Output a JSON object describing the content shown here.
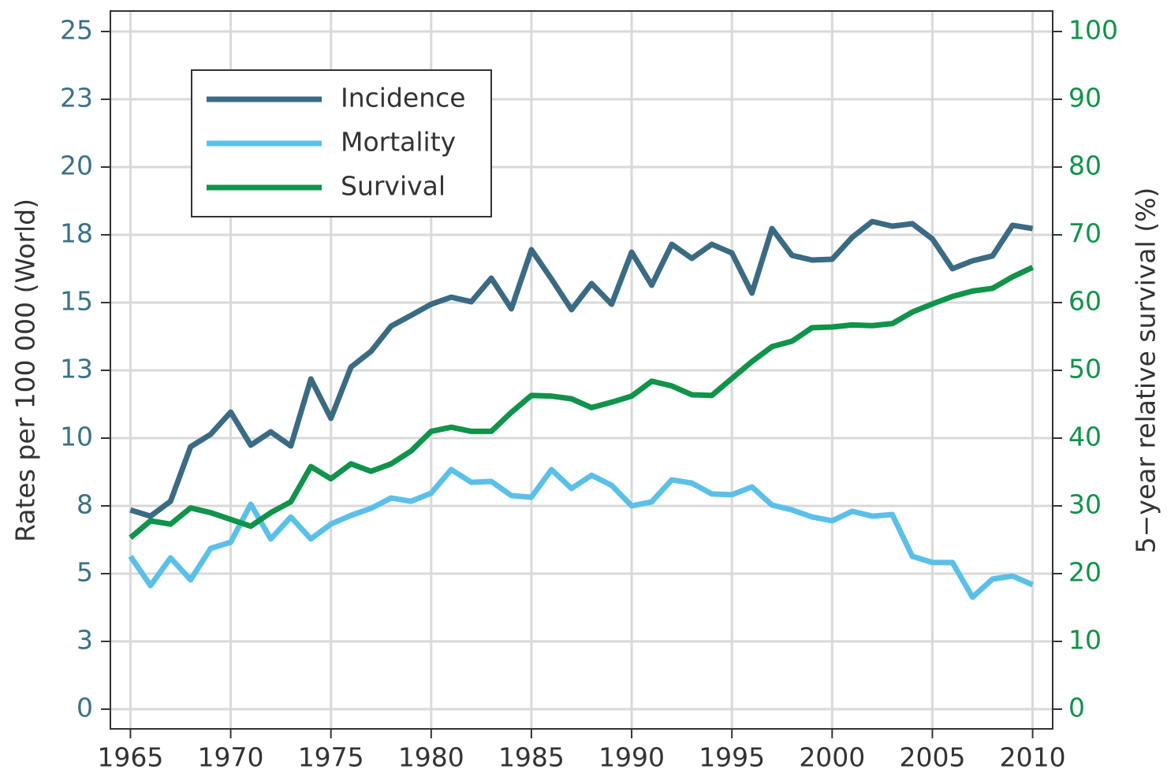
{
  "chart_data": {
    "type": "line",
    "y_label": "Rates per 100 000 (World)",
    "y2_label": "5−year relative survival (%)",
    "x": [
      1965,
      1966,
      1967,
      1968,
      1969,
      1970,
      1971,
      1972,
      1973,
      1974,
      1975,
      1976,
      1977,
      1978,
      1979,
      1980,
      1981,
      1982,
      1983,
      1984,
      1985,
      1986,
      1987,
      1988,
      1989,
      1990,
      1991,
      1992,
      1993,
      1994,
      1995,
      1996,
      1997,
      1998,
      1999,
      2000,
      2001,
      2002,
      2003,
      2004,
      2005,
      2006,
      2007,
      2008,
      2009,
      2010
    ],
    "series": [
      {
        "name": "Incidence",
        "color": "#3a6b82",
        "values": [
          7.35,
          7.12,
          7.67,
          9.68,
          10.14,
          10.96,
          9.74,
          10.23,
          9.71,
          12.18,
          10.73,
          12.62,
          13.2,
          14.13,
          14.53,
          14.94,
          15.2,
          15.03,
          15.9,
          14.77,
          16.95,
          15.87,
          14.74,
          15.7,
          14.94,
          16.86,
          15.64,
          17.15,
          16.63,
          17.15,
          16.83,
          15.35,
          17.73,
          16.74,
          16.57,
          16.6,
          17.41,
          17.99,
          17.82,
          17.91,
          17.35,
          16.25,
          16.54,
          16.72,
          17.85,
          17.73
        ]
      },
      {
        "name": "Mortality",
        "color": "#5bc0e8",
        "values": [
          5.64,
          4.56,
          5.58,
          4.77,
          5.93,
          6.16,
          7.56,
          6.28,
          7.09,
          6.28,
          6.83,
          7.15,
          7.41,
          7.79,
          7.67,
          7.97,
          8.84,
          8.37,
          8.4,
          7.88,
          7.82,
          8.84,
          8.14,
          8.63,
          8.26,
          7.5,
          7.65,
          8.46,
          8.34,
          7.94,
          7.91,
          8.2,
          7.53,
          7.35,
          7.09,
          6.95,
          7.3,
          7.12,
          7.18,
          5.64,
          5.41,
          5.41,
          4.13,
          4.8,
          4.91,
          4.59
        ]
      },
      {
        "name": "Survival",
        "color": "#10934a",
        "axis": "y2",
        "values": [
          25.3,
          27.8,
          27.3,
          29.7,
          29.0,
          28.0,
          27.0,
          29.0,
          30.6,
          35.8,
          34.0,
          36.2,
          35.1,
          36.2,
          38.1,
          41.0,
          41.6,
          41.0,
          41.0,
          43.8,
          46.3,
          46.2,
          45.8,
          44.5,
          45.3,
          46.2,
          48.4,
          47.7,
          46.4,
          46.3,
          48.8,
          51.3,
          53.5,
          54.3,
          56.3,
          56.4,
          56.7,
          56.6,
          56.9,
          58.6,
          59.8,
          60.9,
          61.7,
          62.1,
          63.8,
          65.2
        ]
      }
    ],
    "xlim": [
      1964,
      2011
    ],
    "xticks": [
      1965,
      1970,
      1975,
      1980,
      1985,
      1990,
      1995,
      2000,
      2005,
      2010
    ],
    "ylim": [
      0,
      25
    ],
    "yticks": [
      0,
      {
        "value": 2.5,
        "label": "3"
      },
      5,
      {
        "value": 7.5,
        "label": "8"
      },
      10,
      {
        "value": 12.5,
        "label": "13"
      },
      15,
      {
        "value": 17.5,
        "label": "18"
      },
      20,
      {
        "value": 22.5,
        "label": "23"
      },
      25
    ],
    "y2lim": [
      0,
      100
    ],
    "y2ticks": [
      0,
      10,
      20,
      30,
      40,
      50,
      60,
      70,
      80,
      90,
      100
    ],
    "y_tick_color": "#3b7187",
    "y2_tick_color": "#10934a",
    "grid": true,
    "legend": "upper left"
  }
}
